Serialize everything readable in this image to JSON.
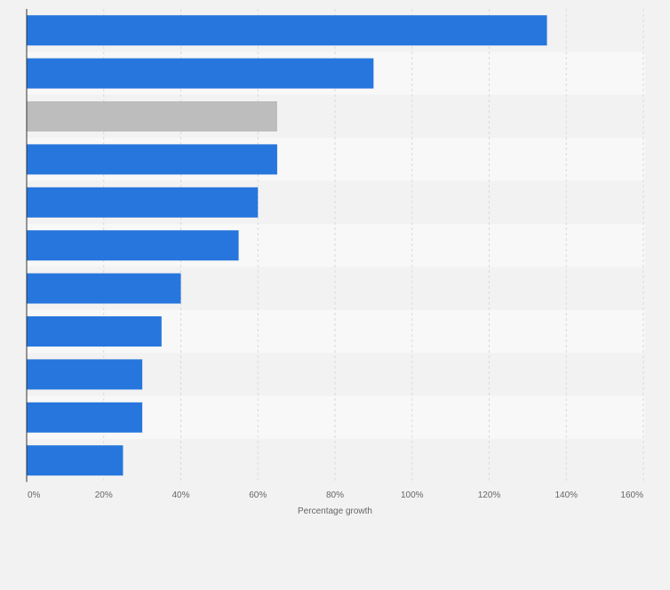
{
  "chart_data": {
    "type": "bar",
    "orientation": "horizontal",
    "categories": [
      "",
      "",
      "",
      "",
      "",
      "",
      "",
      "",
      "",
      "",
      ""
    ],
    "values": [
      135,
      90,
      65,
      65,
      60,
      55,
      40,
      35,
      30,
      30,
      25
    ],
    "highlight_index": 2,
    "title": "",
    "xlabel": "Percentage growth",
    "ylabel": "",
    "xlim": [
      0,
      160
    ],
    "x_ticks": [
      "0%",
      "20%",
      "40%",
      "60%",
      "80%",
      "100%",
      "120%",
      "140%",
      "160%"
    ],
    "grid": true,
    "legend": "none"
  },
  "colors": {
    "bar": "#2776dd",
    "bar_highlight": "#bdbdbd",
    "band_dark": "#f2f2f2",
    "band_light": "#f8f8f8",
    "grid": "#d9d9d9",
    "axis": "#333333",
    "tick_text": "#666666"
  }
}
